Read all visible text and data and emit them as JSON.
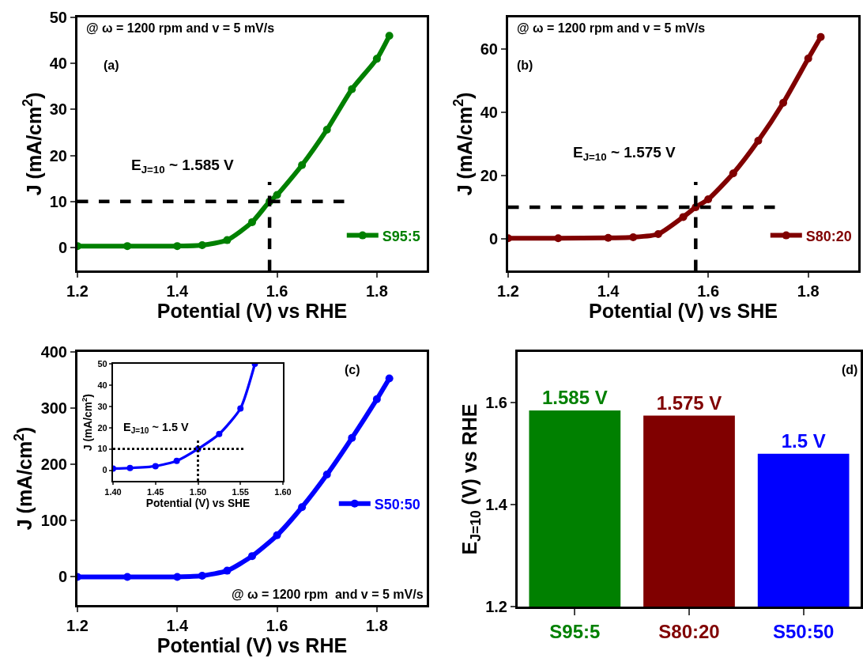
{
  "chart_data": [
    {
      "type": "line",
      "xlabel": "Potential (V) vs RHE",
      "ylabel": "J (mA/cm$^{2}$)",
      "annotations": [
        "@ ω = 1200 rpm and v = 5 mV/s",
        "(a)",
        "E$_{J=10}$ ~ 1.585 V"
      ],
      "x": [
        1.2,
        1.3,
        1.4,
        1.45,
        1.5,
        1.55,
        1.585,
        1.6,
        1.65,
        1.7,
        1.75,
        1.8,
        1.825
      ],
      "series": [
        {
          "name": "S95:5",
          "color": "#008000",
          "values": [
            0.3,
            0.3,
            0.3,
            0.5,
            1.6,
            5.5,
            10,
            11.4,
            17.9,
            25.6,
            34.4,
            41,
            46
          ]
        }
      ],
      "xlim": [
        1.2,
        1.9
      ],
      "xticks": [
        1.2,
        1.4,
        1.6,
        1.8
      ],
      "ylim": [
        -5,
        50
      ],
      "yticks": [
        0,
        10,
        20,
        30,
        40,
        50
      ],
      "marker": "circle",
      "line_style": "solid",
      "legend": "bottom right",
      "ref_lines": [
        {
          "axis": "y",
          "value": 10,
          "color": "#000000",
          "line_style": "dashed"
        },
        {
          "axis": "x",
          "value": 1.585,
          "color": "#000000",
          "line_style": "dashed"
        }
      ]
    },
    {
      "type": "line",
      "xlabel": "Potential (V) vs SHE",
      "ylabel": "J (mA/cm$^{2}$)",
      "annotations": [
        "@ ω = 1200 rpm and v = 5 mV/s",
        "(b)",
        "E$_{J=10}$ ~ 1.575 V"
      ],
      "x": [
        1.2,
        1.3,
        1.4,
        1.45,
        1.5,
        1.55,
        1.575,
        1.6,
        1.65,
        1.7,
        1.75,
        1.8,
        1.825
      ],
      "series": [
        {
          "name": "S80:20",
          "color": "#800000",
          "values": [
            0.2,
            0.2,
            0.3,
            0.5,
            1.5,
            6.9,
            10,
            12.5,
            20.7,
            31,
            43,
            57,
            63.8
          ]
        }
      ],
      "xlim": [
        1.2,
        1.9
      ],
      "xticks": [
        1.2,
        1.4,
        1.6,
        1.8
      ],
      "ylim": [
        -10,
        70
      ],
      "yticks": [
        0,
        20,
        40,
        60
      ],
      "marker": "circle",
      "line_style": "solid",
      "legend": "bottom right",
      "ref_lines": [
        {
          "axis": "y",
          "value": 10,
          "color": "#000000",
          "line_style": "dashed"
        },
        {
          "axis": "x",
          "value": 1.575,
          "color": "#000000",
          "line_style": "dashed"
        }
      ]
    },
    {
      "type": "line",
      "xlabel": "Potential (V) vs RHE",
      "ylabel": "J (mA/cm$^{2}$)",
      "annotations": [
        "(c)",
        "@ ω = 1200 rpm  and v = 5 mV/s"
      ],
      "x": [
        1.2,
        1.3,
        1.4,
        1.45,
        1.5,
        1.55,
        1.6,
        1.65,
        1.7,
        1.75,
        1.8,
        1.825
      ],
      "series": [
        {
          "name": "S50:50",
          "color": "#0000ff",
          "values": [
            0,
            0,
            0,
            2,
            11,
            37,
            74,
            124,
            182,
            247,
            316,
            353
          ]
        }
      ],
      "xlim": [
        1.2,
        1.9
      ],
      "xticks": [
        1.2,
        1.4,
        1.6,
        1.8
      ],
      "ylim": [
        -50,
        400
      ],
      "yticks": [
        0,
        100,
        200,
        300,
        400
      ],
      "marker": "circle",
      "line_style": "solid",
      "legend": "right"
    },
    {
      "type": "line",
      "xlabel": "Potential (V) vs SHE",
      "ylabel": "J (mA/cm$^{2}$)",
      "annotations": [
        "E$_{J=10}$ ~ 1.5 V"
      ],
      "x": [
        1.4,
        1.42,
        1.45,
        1.475,
        1.5,
        1.525,
        1.55,
        1.567
      ],
      "series": [
        {
          "color": "#0000ff",
          "values": [
            0.8,
            1.0,
            1.9,
            4.4,
            10,
            17,
            29,
            50
          ]
        }
      ],
      "xlim": [
        1.4,
        1.6
      ],
      "xticks": [
        {
          "value": 1.4,
          "label": "1.40"
        },
        {
          "value": 1.45,
          "label": "1.45"
        },
        {
          "value": 1.5,
          "label": "1.50"
        },
        {
          "value": 1.55,
          "label": "1.55"
        },
        {
          "value": 1.6,
          "label": "1.60"
        }
      ],
      "ylim": [
        -5,
        50
      ],
      "yticks": [
        0,
        10,
        20,
        30,
        40,
        50
      ],
      "marker": "circle",
      "line_style": "solid",
      "ref_lines": [
        {
          "axis": "y",
          "value": 10,
          "color": "#000000",
          "line_style": "dotted"
        },
        {
          "axis": "x",
          "value": 1.5,
          "color": "#000000",
          "line_style": "dotted"
        }
      ]
    },
    {
      "type": "bar",
      "ylabel": "E$_{J=10}$ (V) vs RHE",
      "annotations": [
        "(d)"
      ],
      "categories": [
        "S95:5",
        "S80:20",
        "S50:50"
      ],
      "values": [
        1.585,
        1.575,
        1.5
      ],
      "colors": [
        "#008000",
        "#800000",
        "#0000ff"
      ],
      "value_labels": [
        "1.585 V",
        "1.575 V",
        "1.5 V"
      ],
      "ylim": [
        1.2,
        1.7
      ],
      "yticks": [
        1.2,
        1.4,
        1.6
      ]
    }
  ]
}
